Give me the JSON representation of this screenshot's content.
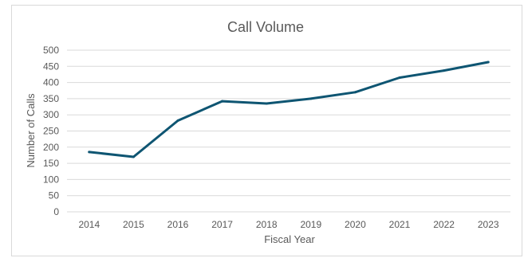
{
  "chart_data": {
    "type": "line",
    "title": "Call Volume",
    "xlabel": "Fiscal Year",
    "ylabel": "Number of Calls",
    "categories": [
      "2014",
      "2015",
      "2016",
      "2017",
      "2018",
      "2019",
      "2020",
      "2021",
      "2022",
      "2023"
    ],
    "series": [
      {
        "values": [
          185,
          170,
          282,
          342,
          335,
          350,
          370,
          415,
          437,
          463
        ]
      }
    ],
    "ylim": [
      0,
      500
    ],
    "yticks": [
      0,
      50,
      100,
      150,
      200,
      250,
      300,
      350,
      400,
      450,
      500
    ],
    "grid": true,
    "legend": "none",
    "line_color": "#0e5572",
    "grid_color": "#d9d9d9"
  }
}
